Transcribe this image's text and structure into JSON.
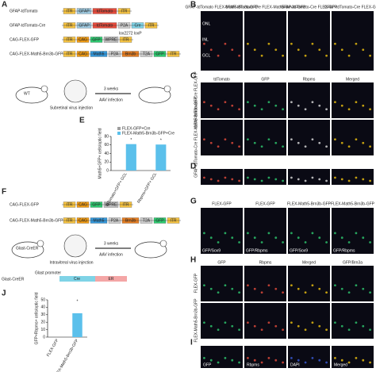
{
  "panel_labels": [
    "A",
    "B",
    "C",
    "D",
    "E",
    "F",
    "G",
    "H",
    "I",
    "J"
  ],
  "panel_a": {
    "constructs": [
      {
        "name": "GFAP-tdTomato",
        "parts": [
          {
            "label": "ITR",
            "color": "#f6c342"
          },
          {
            "label": "GFAP",
            "color": "#9ecae1"
          },
          {
            "label": "tdTomato",
            "color": "#e74c3c"
          },
          {
            "label": "ITR",
            "color": "#f6c342"
          }
        ]
      },
      {
        "name": "GFAP-tdTomato-Cre",
        "parts": [
          {
            "label": "ITR",
            "color": "#f6c342"
          },
          {
            "label": "GFAP",
            "color": "#9ecae1"
          },
          {
            "label": "tdTomato",
            "color": "#e74c3c"
          },
          {
            "label": "P2A",
            "color": "#cccccc"
          },
          {
            "label": "Cre",
            "color": "#7fd3e6"
          },
          {
            "label": "ITR",
            "color": "#f6c342"
          }
        ]
      },
      {
        "name": "CAG-FLEX-GFP",
        "parts": [
          {
            "label": "ITR",
            "color": "#f6c342"
          },
          {
            "label": "CAG",
            "color": "#f39c12"
          },
          {
            "label": "GFP",
            "color": "#2ecc71"
          },
          {
            "label": "WPRE",
            "color": "#bdbdbd"
          },
          {
            "label": "ITR",
            "color": "#f6c342"
          }
        ]
      },
      {
        "name": "CAG-FLEX-Math5-Brn3b-GFP",
        "parts": [
          {
            "label": "ITR",
            "color": "#f6c342"
          },
          {
            "label": "CAG",
            "color": "#f39c12"
          },
          {
            "label": "Math5",
            "color": "#3498db"
          },
          {
            "label": "P2A",
            "color": "#cccccc"
          },
          {
            "label": "Brn3b",
            "color": "#e67e22"
          },
          {
            "label": "T2A",
            "color": "#cccccc"
          },
          {
            "label": "GFP",
            "color": "#2ecc71"
          },
          {
            "label": "ITR",
            "color": "#f6c342"
          }
        ]
      }
    ],
    "lox": "lox2272 loxP",
    "wt": "WT",
    "injection": "Subretinal virus injection",
    "interval": "3 weeks",
    "method": "AAV infection"
  },
  "panel_b": {
    "headers": [
      "GFAP-tdTomato FLEX-Math5-Brn3b-GFP",
      "GFAP-tdTomato-Cre FLEX-Math5-Brn3b-GFP",
      "GFAP-tdTomato-Cre FLEX-GFP",
      "GFAP-tdTomato-Cre FLEX-GFP"
    ],
    "layers": [
      "ONL",
      "INL",
      "GCL"
    ]
  },
  "panel_c": {
    "channels": [
      "tdTomato",
      "GFP",
      "Rbpms",
      "Merged"
    ],
    "rows": [
      "GFAP-tdTomato-Cre FLEX-GFP",
      "GFAP-tdTomato-Cre FLEX-Math5-Brn3b-GFP"
    ]
  },
  "panel_f": {
    "constructs": [
      {
        "name": "CAG-FLEX-GFP",
        "parts": [
          {
            "label": "ITR",
            "color": "#f6c342"
          },
          {
            "label": "CAG",
            "color": "#f39c12"
          },
          {
            "label": "GFP",
            "color": "#2ecc71"
          },
          {
            "label": "WPRE",
            "color": "#bdbdbd"
          },
          {
            "label": "ITR",
            "color": "#f6c342"
          }
        ]
      },
      {
        "name": "CAG-FLEX-Math5-Brn3b-GFP",
        "parts": [
          {
            "label": "ITR",
            "color": "#f6c342"
          },
          {
            "label": "CAG",
            "color": "#f39c12"
          },
          {
            "label": "Math5",
            "color": "#3498db"
          },
          {
            "label": "P2A",
            "color": "#cccccc"
          },
          {
            "label": "Brn3b",
            "color": "#e67e22"
          },
          {
            "label": "T2A",
            "color": "#cccccc"
          },
          {
            "label": "GFP",
            "color": "#2ecc71"
          },
          {
            "label": "ITR",
            "color": "#f6c342"
          }
        ]
      }
    ],
    "mouse": "Glast-CreER",
    "injection": "Intravitreal virus injection",
    "interval": "3 weeks",
    "method": "AAV infection",
    "promoter": "Glast promoter",
    "cre": "Cre",
    "er": "ER"
  },
  "panel_g": {
    "headers": [
      "FLEX-GFP",
      "FLEX-GFP",
      "FLEX-Math5-Brn3b-GFP",
      "FLEX-Math5-Brn3b-GFP"
    ],
    "stains": [
      "GFP/Sox9",
      "GFP/Rbpms",
      "GFP/Sox9",
      "GFP/Rbpms"
    ]
  },
  "panel_h": {
    "channels": [
      "GFP",
      "Rbpms",
      "Merged",
      "GFP/Brn3a"
    ],
    "rows": [
      "FLEX-GFP",
      "FLEX-Math5-Brn3b-GFP"
    ]
  },
  "panel_i": {
    "channels": [
      "GFP",
      "Rbpms",
      "DAPI",
      "Merged"
    ]
  },
  "chart_data": [
    {
      "type": "grouped_bar",
      "ylabel": "Math5+GFP+ cells/optic field",
      "categories": [
        "tdTomato+GFP+ GCL",
        "Rbpms+GFP+ GCL"
      ],
      "series": [
        {
          "name": "FLEX-GFP+Cre",
          "color": "#9e9e9e",
          "values": [
            0,
            0
          ]
        },
        {
          "name": "FLEX-Math5-Brn3b-GFP+Cre",
          "color": "#5bc0eb",
          "values": [
            62,
            61
          ]
        }
      ],
      "annotations": [
        "*",
        "*"
      ],
      "ylim": [
        0,
        80
      ],
      "yticks": [
        0,
        20,
        40,
        60,
        80
      ]
    },
    {
      "type": "bar",
      "ylabel": "GFP+Rbpms+ cells/optic field",
      "categories": [
        "FLEX-GFP",
        "FLEX-Math5-Brn3b-GFP"
      ],
      "values": [
        0,
        32
      ],
      "color": "#5bc0eb",
      "annotations": [
        "*"
      ],
      "ylim": [
        0,
        50
      ],
      "yticks": [
        0,
        10,
        20,
        30,
        40,
        50
      ]
    }
  ]
}
